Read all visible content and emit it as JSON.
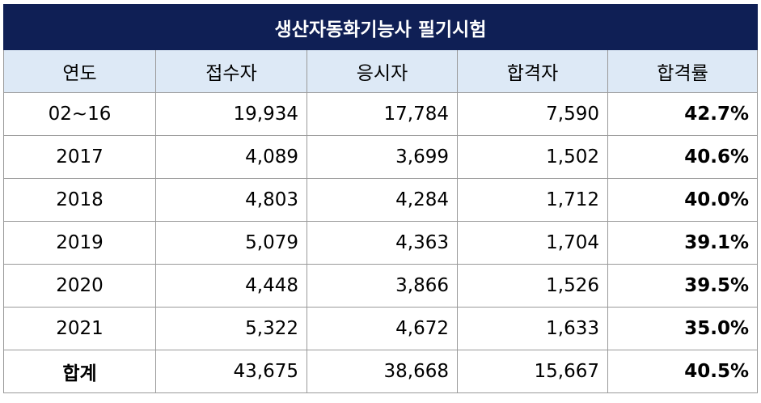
{
  "table": {
    "title": "생산자동화기능사 필기시험",
    "headers": [
      "연도",
      "접수자",
      "응시자",
      "합격자",
      "합격률"
    ],
    "rows": [
      {
        "year": "02~16",
        "applicants": "19,934",
        "examinees": "17,784",
        "passers": "7,590",
        "pass_rate": "42.7%"
      },
      {
        "year": "2017",
        "applicants": "4,089",
        "examinees": "3,699",
        "passers": "1,502",
        "pass_rate": "40.6%"
      },
      {
        "year": "2018",
        "applicants": "4,803",
        "examinees": "4,284",
        "passers": "1,712",
        "pass_rate": "40.0%"
      },
      {
        "year": "2019",
        "applicants": "5,079",
        "examinees": "4,363",
        "passers": "1,704",
        "pass_rate": "39.1%"
      },
      {
        "year": "2020",
        "applicants": "4,448",
        "examinees": "3,866",
        "passers": "1,526",
        "pass_rate": "39.5%"
      },
      {
        "year": "2021",
        "applicants": "5,322",
        "examinees": "4,672",
        "passers": "1,633",
        "pass_rate": "35.0%"
      }
    ],
    "total": {
      "year": "합계",
      "applicants": "43,675",
      "examinees": "38,668",
      "passers": "15,667",
      "pass_rate": "40.5%"
    }
  },
  "colors": {
    "title_bg": "#0f1f55",
    "header_bg": "#dde9f6",
    "border": "#9a9a9a"
  }
}
